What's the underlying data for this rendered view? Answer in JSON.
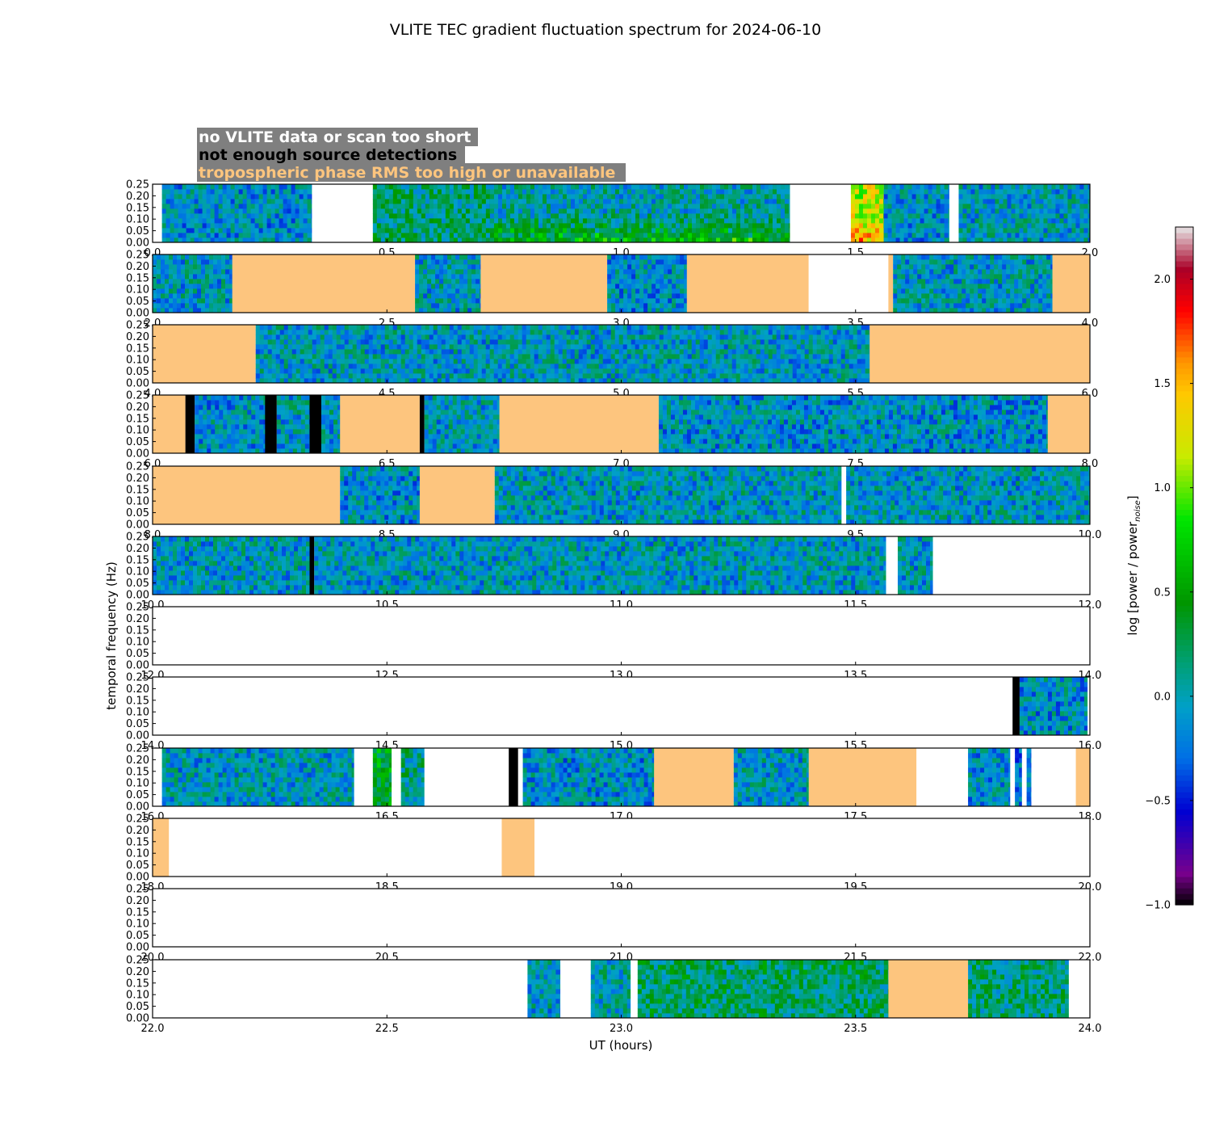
{
  "chart_data": {
    "type": "heatmap",
    "title": "VLITE TEC gradient fluctuation spectrum for 2024-06-10",
    "xlabel": "UT (hours)",
    "ylabel": "temporal frequency (Hz)",
    "ylim": [
      0,
      0.25
    ],
    "yticks": [
      "0.00",
      "0.05",
      "0.10",
      "0.15",
      "0.20",
      "0.25"
    ],
    "colorbar": {
      "label": "log [power / power",
      "label_sub": "noise",
      "label_close": "]",
      "range": [
        -1.0,
        2.25
      ],
      "ticks": [
        "−1.0",
        "−0.5",
        "0.0",
        "0.5",
        "1.0",
        "1.5",
        "2.0"
      ],
      "tick_values": [
        -1.0,
        -0.5,
        0.0,
        0.5,
        1.0,
        1.5,
        2.0
      ]
    },
    "legend": {
      "background": "#7f7f7f",
      "items": [
        {
          "label": "no VLITE data or scan too short",
          "color": "#ffffff"
        },
        {
          "label": "not enough source detections",
          "color": "#000000"
        },
        {
          "label": "tropospheric phase RMS too high or unavailable",
          "color": "#fdc57e"
        }
      ]
    },
    "flag_colors": {
      "nodata": "#ffffff",
      "nodet": "#000000",
      "tropo": "#fdc57e"
    },
    "panels": [
      {
        "range": [
          0,
          2
        ],
        "ticks": [
          "0.0",
          "0.5",
          "1.0",
          "1.5",
          "2.0"
        ],
        "segments": [
          {
            "from": 0.02,
            "to": 0.34,
            "kind": "spec",
            "base": -0.1
          },
          {
            "from": 0.34,
            "to": 0.47,
            "kind": "nodata"
          },
          {
            "from": 0.47,
            "to": 0.72,
            "kind": "spec",
            "base": 0.15,
            "hot": 0.05
          },
          {
            "from": 0.72,
            "to": 1.36,
            "kind": "spec",
            "base": 0.0,
            "hot": 0.55
          },
          {
            "from": 1.36,
            "to": 1.49,
            "kind": "nodata"
          },
          {
            "from": 1.49,
            "to": 1.56,
            "kind": "spec",
            "base": 1.2,
            "hot": 0.25
          },
          {
            "from": 1.56,
            "to": 1.7,
            "kind": "spec",
            "base": -0.1
          },
          {
            "from": 1.7,
            "to": 1.72,
            "kind": "nodata"
          },
          {
            "from": 1.72,
            "to": 2.0,
            "kind": "spec",
            "base": -0.05
          }
        ]
      },
      {
        "range": [
          2,
          4
        ],
        "ticks": [
          "2.0",
          "2.5",
          "3.0",
          "3.5",
          "4.0"
        ],
        "segments": [
          {
            "from": 2.0,
            "to": 2.17,
            "kind": "spec",
            "base": -0.05
          },
          {
            "from": 2.17,
            "to": 2.56,
            "kind": "tropo"
          },
          {
            "from": 2.56,
            "to": 2.7,
            "kind": "spec",
            "base": -0.05
          },
          {
            "from": 2.7,
            "to": 2.97,
            "kind": "tropo"
          },
          {
            "from": 2.97,
            "to": 3.14,
            "kind": "spec",
            "base": -0.1
          },
          {
            "from": 3.14,
            "to": 3.4,
            "kind": "tropo"
          },
          {
            "from": 3.4,
            "to": 3.57,
            "kind": "nodata"
          },
          {
            "from": 3.57,
            "to": 3.58,
            "kind": "tropo"
          },
          {
            "from": 3.58,
            "to": 3.92,
            "kind": "spec",
            "base": -0.05
          },
          {
            "from": 3.92,
            "to": 4.0,
            "kind": "tropo"
          }
        ]
      },
      {
        "range": [
          4,
          6
        ],
        "ticks": [
          "4.0",
          "4.5",
          "5.0",
          "5.5",
          "6.0"
        ],
        "segments": [
          {
            "from": 4.0,
            "to": 4.22,
            "kind": "tropo"
          },
          {
            "from": 4.22,
            "to": 5.53,
            "kind": "spec",
            "base": -0.05
          },
          {
            "from": 5.53,
            "to": 6.0,
            "kind": "tropo"
          }
        ]
      },
      {
        "range": [
          6,
          8
        ],
        "ticks": [
          "6.0",
          "6.5",
          "7.0",
          "7.5",
          "8.0"
        ],
        "segments": [
          {
            "from": 6.0,
            "to": 6.07,
            "kind": "tropo"
          },
          {
            "from": 6.07,
            "to": 6.09,
            "kind": "nodet"
          },
          {
            "from": 6.09,
            "to": 6.24,
            "kind": "spec",
            "base": -0.1
          },
          {
            "from": 6.24,
            "to": 6.265,
            "kind": "nodet"
          },
          {
            "from": 6.265,
            "to": 6.335,
            "kind": "spec",
            "base": -0.05
          },
          {
            "from": 6.335,
            "to": 6.36,
            "kind": "nodet"
          },
          {
            "from": 6.36,
            "to": 6.4,
            "kind": "spec",
            "base": -0.05
          },
          {
            "from": 6.4,
            "to": 6.57,
            "kind": "tropo"
          },
          {
            "from": 6.57,
            "to": 6.58,
            "kind": "nodet"
          },
          {
            "from": 6.58,
            "to": 6.74,
            "kind": "spec",
            "base": -0.05
          },
          {
            "from": 6.74,
            "to": 7.08,
            "kind": "tropo"
          },
          {
            "from": 7.08,
            "to": 7.91,
            "kind": "spec",
            "base": -0.1
          },
          {
            "from": 7.91,
            "to": 8.0,
            "kind": "tropo"
          }
        ]
      },
      {
        "range": [
          8,
          10
        ],
        "ticks": [
          "8.0",
          "8.5",
          "9.0",
          "9.5",
          "10.0"
        ],
        "segments": [
          {
            "from": 8.0,
            "to": 8.4,
            "kind": "tropo"
          },
          {
            "from": 8.4,
            "to": 8.57,
            "kind": "spec",
            "base": -0.1
          },
          {
            "from": 8.57,
            "to": 8.73,
            "kind": "tropo"
          },
          {
            "from": 8.73,
            "to": 9.47,
            "kind": "spec",
            "base": -0.05
          },
          {
            "from": 9.47,
            "to": 9.48,
            "kind": "nodata"
          },
          {
            "from": 9.48,
            "to": 10.0,
            "kind": "spec",
            "base": -0.05
          }
        ]
      },
      {
        "range": [
          10,
          12
        ],
        "ticks": [
          "10.0",
          "10.5",
          "11.0",
          "11.5",
          "12.0"
        ],
        "segments": [
          {
            "from": 10.0,
            "to": 10.335,
            "kind": "spec",
            "base": -0.05
          },
          {
            "from": 10.335,
            "to": 10.345,
            "kind": "nodet"
          },
          {
            "from": 10.345,
            "to": 11.565,
            "kind": "spec",
            "base": -0.05
          },
          {
            "from": 11.565,
            "to": 11.59,
            "kind": "nodata"
          },
          {
            "from": 11.59,
            "to": 11.665,
            "kind": "spec",
            "base": -0.05
          },
          {
            "from": 11.665,
            "to": 12.0,
            "kind": "nodata"
          }
        ]
      },
      {
        "range": [
          12,
          14
        ],
        "ticks": [
          "12.0",
          "12.5",
          "13.0",
          "13.5",
          "14.0"
        ],
        "segments": [
          {
            "from": 12.0,
            "to": 14.0,
            "kind": "nodata"
          }
        ]
      },
      {
        "range": [
          14,
          16
        ],
        "ticks": [
          "14.0",
          "14.5",
          "15.0",
          "15.5",
          "16.0"
        ],
        "segments": [
          {
            "from": 14.0,
            "to": 15.835,
            "kind": "nodata"
          },
          {
            "from": 15.835,
            "to": 15.85,
            "kind": "nodet"
          },
          {
            "from": 15.85,
            "to": 15.995,
            "kind": "spec",
            "base": -0.1
          },
          {
            "from": 15.995,
            "to": 16.0,
            "kind": "nodata"
          }
        ]
      },
      {
        "range": [
          16,
          18
        ],
        "ticks": [
          "16.0",
          "16.5",
          "17.0",
          "17.5",
          "18.0"
        ],
        "segments": [
          {
            "from": 16.0,
            "to": 16.02,
            "kind": "nodata"
          },
          {
            "from": 16.02,
            "to": 16.43,
            "kind": "spec",
            "base": -0.05
          },
          {
            "from": 16.43,
            "to": 16.47,
            "kind": "nodata"
          },
          {
            "from": 16.47,
            "to": 16.51,
            "kind": "spec",
            "base": 0.45
          },
          {
            "from": 16.51,
            "to": 16.53,
            "kind": "nodata"
          },
          {
            "from": 16.53,
            "to": 16.58,
            "kind": "spec",
            "base": 0.1
          },
          {
            "from": 16.58,
            "to": 16.76,
            "kind": "nodata"
          },
          {
            "from": 16.76,
            "to": 16.78,
            "kind": "nodet"
          },
          {
            "from": 16.78,
            "to": 16.79,
            "kind": "nodata"
          },
          {
            "from": 16.79,
            "to": 17.07,
            "kind": "spec",
            "base": -0.1
          },
          {
            "from": 17.07,
            "to": 17.24,
            "kind": "tropo"
          },
          {
            "from": 17.24,
            "to": 17.4,
            "kind": "spec",
            "base": -0.05
          },
          {
            "from": 17.4,
            "to": 17.63,
            "kind": "tropo"
          },
          {
            "from": 17.63,
            "to": 17.74,
            "kind": "nodata"
          },
          {
            "from": 17.74,
            "to": 17.83,
            "kind": "spec",
            "base": -0.1
          },
          {
            "from": 17.83,
            "to": 17.84,
            "kind": "nodata"
          },
          {
            "from": 17.84,
            "to": 17.855,
            "kind": "spec",
            "base": -0.2
          },
          {
            "from": 17.855,
            "to": 17.865,
            "kind": "nodata"
          },
          {
            "from": 17.865,
            "to": 17.875,
            "kind": "spec",
            "base": -0.2
          },
          {
            "from": 17.875,
            "to": 17.97,
            "kind": "nodata"
          },
          {
            "from": 17.97,
            "to": 18.0,
            "kind": "tropo"
          }
        ]
      },
      {
        "range": [
          18,
          20
        ],
        "ticks": [
          "18.0",
          "18.5",
          "19.0",
          "19.5",
          "20.0"
        ],
        "segments": [
          {
            "from": 18.0,
            "to": 18.035,
            "kind": "tropo"
          },
          {
            "from": 18.035,
            "to": 18.745,
            "kind": "nodata"
          },
          {
            "from": 18.745,
            "to": 18.815,
            "kind": "tropo"
          },
          {
            "from": 18.815,
            "to": 20.0,
            "kind": "nodata"
          }
        ]
      },
      {
        "range": [
          20,
          22
        ],
        "ticks": [
          "20.0",
          "20.5",
          "21.0",
          "21.5",
          "22.0"
        ],
        "segments": [
          {
            "from": 20.0,
            "to": 22.0,
            "kind": "nodata"
          }
        ]
      },
      {
        "range": [
          22,
          24
        ],
        "ticks": [
          "22.0",
          "22.5",
          "23.0",
          "23.5",
          "24.0"
        ],
        "segments": [
          {
            "from": 22.0,
            "to": 22.8,
            "kind": "nodata"
          },
          {
            "from": 22.8,
            "to": 22.87,
            "kind": "spec",
            "base": -0.05
          },
          {
            "from": 22.87,
            "to": 22.935,
            "kind": "nodata"
          },
          {
            "from": 22.935,
            "to": 23.02,
            "kind": "spec",
            "base": 0.0
          },
          {
            "from": 23.02,
            "to": 23.035,
            "kind": "nodata"
          },
          {
            "from": 23.035,
            "to": 23.57,
            "kind": "spec",
            "base": 0.2
          },
          {
            "from": 23.57,
            "to": 23.74,
            "kind": "tropo"
          },
          {
            "from": 23.74,
            "to": 23.955,
            "kind": "spec",
            "base": 0.15
          },
          {
            "from": 23.955,
            "to": 24.0,
            "kind": "nodata"
          }
        ]
      }
    ]
  }
}
